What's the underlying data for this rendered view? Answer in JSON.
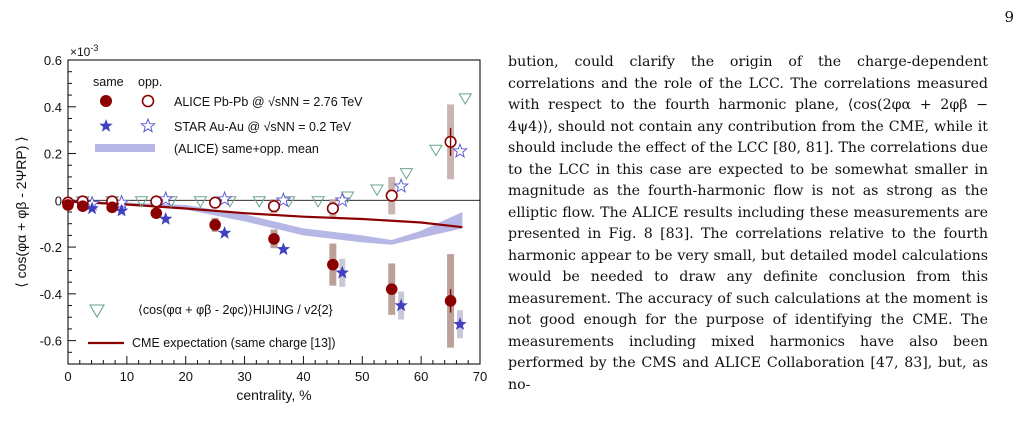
{
  "page_number": "9",
  "figure": {
    "multiplier": "×10",
    "multiplier_exp": "-3",
    "ylabel": "⟨ cos(φα + φβ - 2ΨRP) ⟩",
    "xlabel": "centrality, %",
    "legend_header_same": "same",
    "legend_header_opp": "opp.",
    "legend_alice": "ALICE Pb-Pb @ √sNN = 2.76 TeV",
    "legend_star": "STAR Au-Au @ √sNN = 0.2 TeV",
    "legend_band": "(ALICE) same+opp. mean",
    "legend_hijing": "⟨cos(φα + φβ - 2φc)⟩HIJING / v2{2}",
    "legend_cme": "CME expectation (same charge [13])"
  },
  "chart_data": {
    "type": "scatter",
    "xlabel": "centrality, %",
    "ylabel": "⟨ cos(φα + φβ - 2ΨRP) ⟩",
    "xlim": [
      0,
      70
    ],
    "ylim": [
      -0.7,
      0.6
    ],
    "y_multiplier": "×10^-3",
    "x_ticks": [
      "0",
      "10",
      "20",
      "30",
      "40",
      "50",
      "60",
      "70"
    ],
    "y_ticks": [
      "0.6",
      "0.4",
      "0.2",
      "0",
      "-0.2",
      "-0.4",
      "-0.6"
    ],
    "legend_position": "top-left",
    "series": [
      {
        "name": "ALICE Pb-Pb same",
        "marker": "filled-circle",
        "color": "#8b0000",
        "x": [
          0,
          2.5,
          7.5,
          15,
          25,
          35,
          45,
          55,
          65
        ],
        "y": [
          -0.02,
          -0.025,
          -0.03,
          -0.055,
          -0.105,
          -0.165,
          -0.275,
          -0.38,
          -0.43
        ],
        "syst": [
          0.02,
          0.02,
          0.02,
          0.02,
          0.03,
          0.04,
          0.09,
          0.11,
          0.2
        ]
      },
      {
        "name": "ALICE Pb-Pb opp.",
        "marker": "open-circle",
        "color": "#8b0000",
        "x": [
          0,
          2.5,
          7.5,
          15,
          25,
          35,
          45,
          55,
          65
        ],
        "y": [
          -0.01,
          -0.005,
          -0.005,
          -0.005,
          -0.01,
          -0.025,
          -0.035,
          0.02,
          0.25
        ],
        "syst": [
          0.02,
          0.02,
          0.02,
          0.02,
          0.02,
          0.03,
          0.04,
          0.08,
          0.16
        ]
      },
      {
        "name": "STAR Au-Au same",
        "marker": "filled-star",
        "color": "#4040c0",
        "x": [
          2.5,
          7.5,
          15,
          25,
          35,
          45,
          55,
          65
        ],
        "y": [
          -0.035,
          -0.045,
          -0.08,
          -0.14,
          -0.21,
          -0.31,
          -0.45,
          -0.53
        ]
      },
      {
        "name": "STAR Au-Au opp.",
        "marker": "open-star",
        "color": "#4040c0",
        "x": [
          2.5,
          7.5,
          15,
          25,
          35,
          45,
          55,
          65
        ],
        "y": [
          -0.015,
          -0.01,
          0.005,
          0.005,
          0.0,
          0.0,
          0.06,
          0.21
        ]
      },
      {
        "name": "HIJING",
        "marker": "open-triangle-down",
        "color": "#6aa58a",
        "x": [
          2.5,
          7.5,
          12.5,
          17.5,
          22.5,
          27.5,
          32.5,
          37.5,
          42.5,
          47.5,
          52.5,
          57.5,
          62.5,
          67.5
        ],
        "y": [
          0.0,
          0.0,
          0.0,
          0.0,
          0.0,
          0.0,
          0.0,
          0.0,
          0.0,
          0.02,
          0.05,
          0.12,
          0.22,
          0.44
        ]
      },
      {
        "name": "CME expectation",
        "type": "line",
        "color": "#8b0000",
        "x": [
          0,
          10,
          20,
          30,
          40,
          50,
          60,
          67
        ],
        "y": [
          -0.005,
          -0.018,
          -0.035,
          -0.055,
          -0.07,
          -0.08,
          -0.095,
          -0.115
        ]
      },
      {
        "name": "same+opp. mean band",
        "type": "band",
        "color": "#b7b7e6",
        "x": [
          0,
          10,
          20,
          30,
          40,
          50,
          55,
          60,
          67
        ],
        "y_low": [
          -0.01,
          -0.02,
          -0.04,
          -0.09,
          -0.15,
          -0.18,
          -0.19,
          -0.16,
          -0.12
        ],
        "y_high": [
          0.0,
          -0.01,
          -0.02,
          -0.06,
          -0.12,
          -0.15,
          -0.17,
          -0.13,
          -0.05
        ]
      }
    ]
  },
  "text": {
    "paragraph": "bution, could clarify the origin of the charge-dependent correlations and the role of the LCC. The correlations measured with respect to the fourth harmonic plane, ⟨cos(2φα + 2φβ − 4ψ4)⟩, should not contain any contribution from the CME, while it should include the effect of the LCC [80, 81]. The correlations due to the LCC in this case are expected to be somewhat smaller in magnitude as the fourth-harmonic flow is not as strong as the elliptic flow. The ALICE results including these measurements are presented in Fig. 8 [83]. The correlations relative to the fourth harmonic appear to be very small, but detailed model calculations would be needed to draw any definite conclusion from this measurement. The accuracy of such calculations at the moment is not good enough for the purpose of identifying the CME. The measurements including mixed harmonics have also been performed by the CMS and ALICE Collaboration [47, 83], but, as no-"
  }
}
